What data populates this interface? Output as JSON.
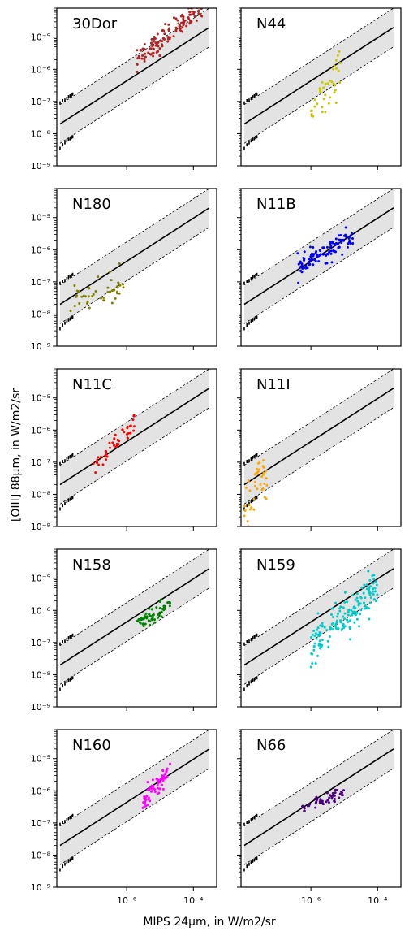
{
  "figure": {
    "xlabel": "MIPS 24µm, in W/m2/sr",
    "ylabel": "[OIII] 88µm, in W/m2/sr"
  },
  "chart_data": {
    "type": "scatter",
    "grid": false,
    "xscale": "log",
    "yscale": "log",
    "xlim": [
      8e-09,
      0.0005
    ],
    "ylim": [
      1e-09,
      8e-05
    ],
    "x_ticks": [
      {
        "value": 1e-06,
        "label": "10⁻⁶"
      },
      {
        "value": 0.0001,
        "label": "10⁻⁴"
      }
    ],
    "y_ticks": [
      {
        "value": 1e-09,
        "label": "10⁻⁹"
      },
      {
        "value": 1e-08,
        "label": "10⁻⁸"
      },
      {
        "value": 1e-07,
        "label": "10⁻⁷"
      },
      {
        "value": 1e-06,
        "label": "10⁻⁶"
      },
      {
        "value": 1e-05,
        "label": "10⁻⁵"
      }
    ],
    "reference": {
      "fit_line": [
        [
          1e-08,
          2e-08
        ],
        [
          0.0003,
          2e-05
        ]
      ],
      "upper_bound": [
        [
          1e-08,
          8e-08
        ],
        [
          0.0003,
          8e-05
        ]
      ],
      "lower_bound": [
        [
          1e-08,
          5e-09
        ],
        [
          0.0003,
          5e-06
        ]
      ],
      "band_color": "#e3e3e3",
      "line_color": "#000000"
    },
    "noise_markers": [
      [
        1e-08,
        9e-08
      ],
      [
        1.2e-08,
        1.05e-07
      ],
      [
        1.4e-08,
        1.1e-07
      ],
      [
        1.6e-08,
        1.25e-07
      ],
      [
        1.8e-08,
        1.4e-07
      ],
      [
        2e-08,
        1.5e-07
      ],
      [
        2.2e-08,
        1.6e-07
      ],
      [
        2.4e-08,
        1.7e-07
      ],
      [
        1e-08,
        3.5e-09
      ],
      [
        1.2e-08,
        4.5e-09
      ],
      [
        1.4e-08,
        5.2e-09
      ],
      [
        1.6e-08,
        6e-09
      ],
      [
        1.8e-08,
        6.5e-09
      ],
      [
        2e-08,
        7e-09
      ],
      [
        2.2e-08,
        7.6e-09
      ],
      [
        2.4e-08,
        8e-09
      ]
    ],
    "panels": [
      {
        "name": "30Dor",
        "color": "#b22222",
        "x_range": [
          2e-06,
          0.0002
        ],
        "y_slope": 0.95,
        "y_at_xmin": 1.6e-06,
        "scatter_dex": 0.18,
        "count": 140
      },
      {
        "name": "N44",
        "color": "#c8c800",
        "x_range": [
          1e-06,
          8e-06
        ],
        "y_slope": 1.3,
        "y_at_xmin": 6e-08,
        "scatter_dex": 0.35,
        "count": 40
      },
      {
        "name": "N180",
        "color": "#808000",
        "x_range": [
          2e-08,
          8e-07
        ],
        "y_slope": 0.25,
        "y_at_xmin": 3e-08,
        "scatter_dex": 0.25,
        "count": 45
      },
      {
        "name": "N11B",
        "color": "#0000ff",
        "x_range": [
          4e-07,
          2e-05
        ],
        "y_slope": 0.55,
        "y_at_xmin": 3e-07,
        "scatter_dex": 0.15,
        "count": 110
      },
      {
        "name": "N11C",
        "color": "#ff0000",
        "x_range": [
          1e-07,
          2e-06
        ],
        "y_slope": 1.15,
        "y_at_xmin": 6e-08,
        "scatter_dex": 0.18,
        "count": 45
      },
      {
        "name": "N11I",
        "color": "#ffa500",
        "x_range": [
          1e-08,
          5e-08
        ],
        "y_slope": 2.2,
        "y_at_xmin": 2e-09,
        "scatter_dex": 0.35,
        "count": 45
      },
      {
        "name": "N158",
        "color": "#008000",
        "x_range": [
          2e-06,
          2e-05
        ],
        "y_slope": 0.55,
        "y_at_xmin": 4e-07,
        "scatter_dex": 0.15,
        "count": 60
      },
      {
        "name": "N159",
        "color": "#00cccc",
        "x_range": [
          1e-06,
          0.0001
        ],
        "y_slope": 1.0,
        "y_at_xmin": 6e-08,
        "scatter_dex": 0.3,
        "count": 170
      },
      {
        "name": "N160",
        "color": "#ff00ff",
        "x_range": [
          3e-06,
          2e-05
        ],
        "y_slope": 1.3,
        "y_at_xmin": 4e-07,
        "scatter_dex": 0.15,
        "count": 70
      },
      {
        "name": "N66",
        "color": "#4b0082",
        "x_range": [
          5e-07,
          1e-05
        ],
        "y_slope": 0.35,
        "y_at_xmin": 3e-07,
        "scatter_dex": 0.08,
        "count": 50
      }
    ]
  }
}
